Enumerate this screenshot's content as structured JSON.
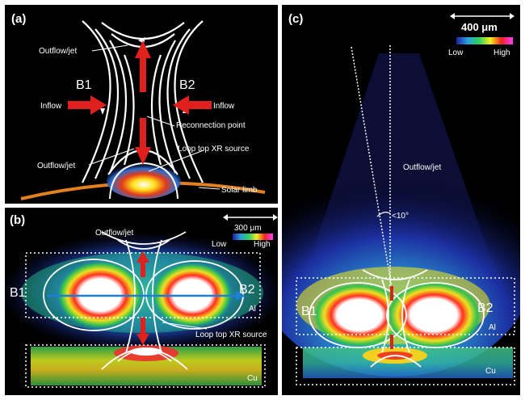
{
  "panel_a": {
    "label": "(a)",
    "outflow_top": "Outflow/jet",
    "b1": "B1",
    "b2": "B2",
    "inflow_left": "Inflow",
    "inflow_right": "Inflow",
    "reconnection_point": "Reconnection point",
    "loop_top": "Loop top XR source",
    "outflow_bottom": "Outflow/jet",
    "solar_limb": "Solar limb"
  },
  "panel_b": {
    "label": "(b)",
    "outflow": "Outflow/jet",
    "scale": "300 μm",
    "low": "Low",
    "high": "High",
    "b1": "B1",
    "b2": "B2",
    "al": "Al",
    "loop_top": "Loop top XR source",
    "cu": "Cu"
  },
  "panel_c": {
    "label": "(c)",
    "scale": "400 μm",
    "low": "Low",
    "high": "High",
    "outflow": "Outflow/jet",
    "angle": "<10°",
    "b1": "B1",
    "b2": "B2",
    "al": "Al",
    "cu": "Cu"
  },
  "colors": {
    "arrow_red": "#e0201c",
    "limb_orange": "#e2801e",
    "axis_blue": "#1c7fd8"
  }
}
